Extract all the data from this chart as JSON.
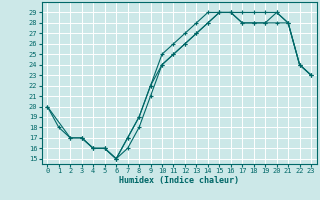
{
  "xlabel": "Humidex (Indice chaleur)",
  "bg_color": "#cce8e8",
  "grid_color": "#ffffff",
  "line_color": "#006868",
  "xlim": [
    -0.5,
    23.5
  ],
  "ylim": [
    14.5,
    30.0
  ],
  "xticks": [
    0,
    1,
    2,
    3,
    4,
    5,
    6,
    7,
    8,
    9,
    10,
    11,
    12,
    13,
    14,
    15,
    16,
    17,
    18,
    19,
    20,
    21,
    22,
    23
  ],
  "yticks": [
    15,
    16,
    17,
    18,
    19,
    20,
    21,
    22,
    23,
    24,
    25,
    26,
    27,
    28,
    29
  ],
  "line1_x": [
    0,
    1,
    2,
    3,
    4,
    5,
    6,
    7,
    8,
    9,
    10,
    11,
    12,
    13,
    14,
    15,
    16,
    17,
    18,
    19,
    20,
    21,
    22,
    23
  ],
  "line1_y": [
    20,
    18,
    17,
    17,
    16,
    16,
    15,
    17,
    19,
    22,
    25,
    26,
    27,
    28,
    29,
    29,
    29,
    29,
    29,
    29,
    29,
    28,
    24,
    23
  ],
  "line2_x": [
    0,
    2,
    3,
    4,
    5,
    6,
    7,
    8,
    9,
    10,
    11,
    12,
    13,
    14,
    15,
    16,
    17,
    18,
    19,
    20,
    21,
    22,
    23
  ],
  "line2_y": [
    20,
    17,
    17,
    16,
    16,
    15,
    16,
    18,
    21,
    24,
    25,
    26,
    27,
    28,
    29,
    29,
    28,
    28,
    28,
    29,
    28,
    24,
    23
  ],
  "line3_x": [
    3,
    4,
    5,
    6,
    7,
    8,
    9,
    10,
    11,
    12,
    13,
    14,
    15,
    16,
    17,
    18,
    19,
    20,
    21,
    22,
    23
  ],
  "line3_y": [
    17,
    16,
    16,
    15,
    17,
    19,
    22,
    24,
    25,
    26,
    27,
    28,
    29,
    29,
    28,
    28,
    28,
    28,
    28,
    24,
    23
  ]
}
